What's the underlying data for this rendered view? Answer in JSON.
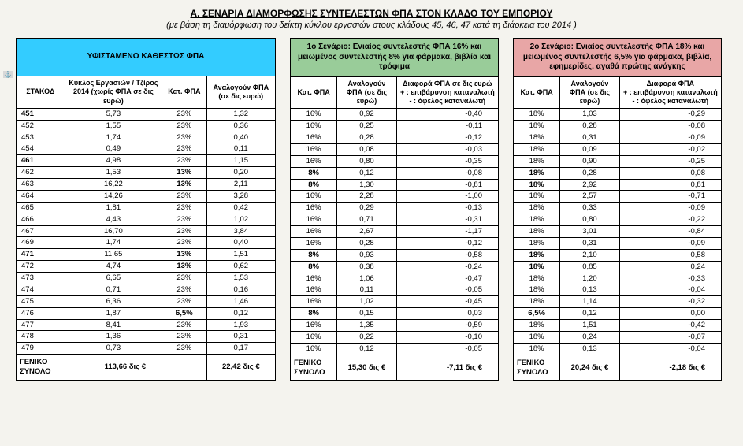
{
  "title": "Α. ΣΕΝΑΡΙΑ ΔΙΑΜΟΡΦΩΣΗΣ ΣΥΝΤΕΛΕΣΤΩΝ ΦΠΑ ΣΤΟΝ ΚΛΑΔΟ ΤΟΥ ΕΜΠΟΡΙΟΥ",
  "subtitle": "(με βάση τη διαμόρφωση του δείκτη κύκλου εργασιών στους κλάδους 45, 46, 47 κατά τη διάρκεια του 2014 )",
  "anchor": "⚓",
  "colors": {
    "table1_header": "#33ccff",
    "table2_header": "#99cc99",
    "table3_header": "#e8a6a6",
    "page_bg": "#f4f3ee"
  },
  "table1": {
    "header": "ΥΦΙΣΤΑΜΕΝΟ  ΚΑΘΕΣΤΩΣ  ΦΠΑ",
    "col0": "ΣΤΑΚΟΔ",
    "col1": "Κύκλος Εργασιών / Τζίρος 2014 (χωρίς ΦΠΑ σε δις ευρώ)",
    "col2": "Κατ. ΦΠΑ",
    "col3": "Αναλογούν ΦΠΑ (σε δις ευρώ)",
    "total_label": "ΓΕΝΙΚΟ ΣΥΝΟΛΟ",
    "total_c1": "113,66 δις €",
    "total_c2": "",
    "total_c3": "22,42 δις €"
  },
  "table2": {
    "header": "1ο Σενάριο: Ενιαίος συντελεστής ΦΠΑ 16% και μειωμένος συντελεστής 8% για φάρμακα, βιβλία και τρόφιμα",
    "col0": "Κατ. ΦΠΑ",
    "col1": "Αναλογούν ΦΠΑ (σε δις ευρώ)",
    "col2": "Διαφορά ΦΠΑ σε δις ευρώ\n+ : επιβάρυνση καταναλωτή\n- : όφελος καταναλωτή",
    "total_label": "ΓΕΝΙΚΟ ΣΥΝΟΛΟ",
    "total_c1": "15,30 δις €",
    "total_c2": "-7,11 δις €"
  },
  "table3": {
    "header": "2ο Σενάριο: Ενιαίος συντελεστής ΦΠΑ 18% και μειωμένος συντελεστής 6,5% για φάρμακα, βιβλία, εφημερίδες, αγαθά πρώτης ανάγκης",
    "col0": "Κατ. ΦΠΑ",
    "col1": "Αναλογούν ΦΠΑ (σε δις ευρώ)",
    "col2": "Διαφορά ΦΠΑ\n+ : επιβάρυνση καταναλωτή\n- : όφελος καταναλωτή",
    "total_label": "ΓΕΝΙΚΟ ΣΥΝΟΛΟ",
    "total_c1": "20,24 δις €",
    "total_c2": "-2,18 δις €"
  },
  "rows": [
    {
      "code": "451",
      "bold": true,
      "t1": {
        "c1": "5,73",
        "c2": "23%",
        "c3": "1,32"
      },
      "t2": {
        "c0": "16%",
        "c1": "0,92",
        "c2": "-0,40"
      },
      "t3": {
        "c0": "18%",
        "c1": "1,03",
        "c2": "-0,29"
      }
    },
    {
      "code": "452",
      "t1": {
        "c1": "1,55",
        "c2": "23%",
        "c3": "0,36"
      },
      "t2": {
        "c0": "16%",
        "c1": "0,25",
        "c2": "-0,11"
      },
      "t3": {
        "c0": "18%",
        "c1": "0,28",
        "c2": "-0,08"
      }
    },
    {
      "code": "453",
      "t1": {
        "c1": "1,74",
        "c2": "23%",
        "c3": "0,40"
      },
      "t2": {
        "c0": "16%",
        "c1": "0,28",
        "c2": "-0,12"
      },
      "t3": {
        "c0": "18%",
        "c1": "0,31",
        "c2": "-0,09"
      }
    },
    {
      "code": "454",
      "t1": {
        "c1": "0,49",
        "c2": "23%",
        "c3": "0,11"
      },
      "t2": {
        "c0": "16%",
        "c1": "0,08",
        "c2": "-0,03"
      },
      "t3": {
        "c0": "18%",
        "c1": "0,09",
        "c2": "-0,02"
      }
    },
    {
      "code": "461",
      "bold": true,
      "t1": {
        "c1": "4,98",
        "c2": "23%",
        "c3": "1,15"
      },
      "t2": {
        "c0": "16%",
        "c1": "0,80",
        "c2": "-0,35"
      },
      "t3": {
        "c0": "18%",
        "c1": "0,90",
        "c2": "-0,25"
      }
    },
    {
      "code": "462",
      "t1": {
        "c1": "1,53",
        "c2": "13%",
        "pctBold": true,
        "c3": "0,20"
      },
      "t2": {
        "c0": "8%",
        "pctBold": true,
        "c1": "0,12",
        "c2": "-0,08"
      },
      "t3": {
        "c0": "18%",
        "pctBold": true,
        "c1": "0,28",
        "c2": "0,08"
      }
    },
    {
      "code": "463",
      "t1": {
        "c1": "16,22",
        "c2": "13%",
        "pctBold": true,
        "c3": "2,11"
      },
      "t2": {
        "c0": "8%",
        "pctBold": true,
        "c1": "1,30",
        "c2": "-0,81"
      },
      "t3": {
        "c0": "18%",
        "pctBold": true,
        "c1": "2,92",
        "c2": "0,81"
      }
    },
    {
      "code": "464",
      "t1": {
        "c1": "14,26",
        "c2": "23%",
        "c3": "3,28"
      },
      "t2": {
        "c0": "16%",
        "c1": "2,28",
        "c2": "-1,00"
      },
      "t3": {
        "c0": "18%",
        "c1": "2,57",
        "c2": "-0,71"
      }
    },
    {
      "code": "465",
      "t1": {
        "c1": "1,81",
        "c2": "23%",
        "c3": "0,42"
      },
      "t2": {
        "c0": "16%",
        "c1": "0,29",
        "c2": "-0,13"
      },
      "t3": {
        "c0": "18%",
        "c1": "0,33",
        "c2": "-0,09"
      }
    },
    {
      "code": "466",
      "t1": {
        "c1": "4,43",
        "c2": "23%",
        "c3": "1,02"
      },
      "t2": {
        "c0": "16%",
        "c1": "0,71",
        "c2": "-0,31"
      },
      "t3": {
        "c0": "18%",
        "c1": "0,80",
        "c2": "-0,22"
      }
    },
    {
      "code": "467",
      "t1": {
        "c1": "16,70",
        "c2": "23%",
        "c3": "3,84"
      },
      "t2": {
        "c0": "16%",
        "c1": "2,67",
        "c2": "-1,17"
      },
      "t3": {
        "c0": "18%",
        "c1": "3,01",
        "c2": "-0,84"
      }
    },
    {
      "code": "469",
      "t1": {
        "c1": "1,74",
        "c2": "23%",
        "c3": "0,40"
      },
      "t2": {
        "c0": "16%",
        "c1": "0,28",
        "c2": "-0,12"
      },
      "t3": {
        "c0": "18%",
        "c1": "0,31",
        "c2": "-0,09"
      }
    },
    {
      "code": "471",
      "bold": true,
      "t1": {
        "c1": "11,65",
        "c2": "13%",
        "pctBold": true,
        "c3": "1,51"
      },
      "t2": {
        "c0": "8%",
        "pctBold": true,
        "c1": "0,93",
        "c2": "-0,58"
      },
      "t3": {
        "c0": "18%",
        "pctBold": true,
        "c1": "2,10",
        "c2": "0,58"
      }
    },
    {
      "code": "472",
      "t1": {
        "c1": "4,74",
        "c2": "13%",
        "pctBold": true,
        "c3": "0,62"
      },
      "t2": {
        "c0": "8%",
        "pctBold": true,
        "c1": "0,38",
        "c2": "-0,24"
      },
      "t3": {
        "c0": "18%",
        "pctBold": true,
        "c1": "0,85",
        "c2": "0,24"
      }
    },
    {
      "code": "473",
      "t1": {
        "c1": "6,65",
        "c2": "23%",
        "c3": "1,53"
      },
      "t2": {
        "c0": "16%",
        "c1": "1,06",
        "c2": "-0,47"
      },
      "t3": {
        "c0": "18%",
        "c1": "1,20",
        "c2": "-0,33"
      }
    },
    {
      "code": "474",
      "t1": {
        "c1": "0,71",
        "c2": "23%",
        "c3": "0,16"
      },
      "t2": {
        "c0": "16%",
        "c1": "0,11",
        "c2": "-0,05"
      },
      "t3": {
        "c0": "18%",
        "c1": "0,13",
        "c2": "-0,04"
      }
    },
    {
      "code": "475",
      "t1": {
        "c1": "6,36",
        "c2": "23%",
        "c3": "1,46"
      },
      "t2": {
        "c0": "16%",
        "c1": "1,02",
        "c2": "-0,45"
      },
      "t3": {
        "c0": "18%",
        "c1": "1,14",
        "c2": "-0,32"
      }
    },
    {
      "code": "476",
      "t1": {
        "c1": "1,87",
        "c2": "6,5%",
        "pctBold": true,
        "c3": "0,12"
      },
      "t2": {
        "c0": "8%",
        "pctBold": true,
        "c1": "0,15",
        "c2": "0,03"
      },
      "t3": {
        "c0": "6,5%",
        "pctBold": true,
        "c1": "0,12",
        "c2": "0,00"
      }
    },
    {
      "code": "477",
      "t1": {
        "c1": "8,41",
        "c2": "23%",
        "c3": "1,93"
      },
      "t2": {
        "c0": "16%",
        "c1": "1,35",
        "c2": "-0,59"
      },
      "t3": {
        "c0": "18%",
        "c1": "1,51",
        "c2": "-0,42"
      }
    },
    {
      "code": "478",
      "t1": {
        "c1": "1,36",
        "c2": "23%",
        "c3": "0,31"
      },
      "t2": {
        "c0": "16%",
        "c1": "0,22",
        "c2": "-0,10"
      },
      "t3": {
        "c0": "18%",
        "c1": "0,24",
        "c2": "-0,07"
      }
    },
    {
      "code": "479",
      "t1": {
        "c1": "0,73",
        "c2": "23%",
        "c3": "0,17"
      },
      "t2": {
        "c0": "16%",
        "c1": "0,12",
        "c2": "-0,05"
      },
      "t3": {
        "c0": "18%",
        "c1": "0,13",
        "c2": "-0,04"
      }
    }
  ]
}
